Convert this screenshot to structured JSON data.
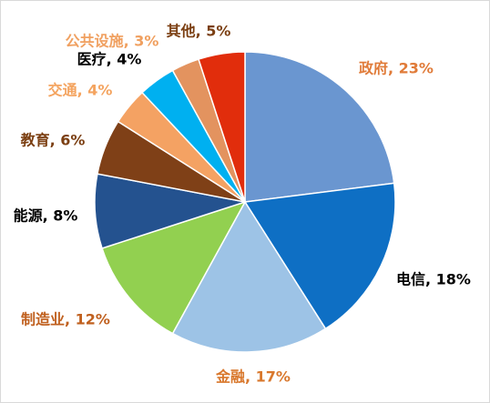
{
  "chart_data": {
    "type": "pie",
    "values": [
      23,
      18,
      17,
      12,
      8,
      6,
      4,
      4,
      3,
      5
    ],
    "value_labels": [
      "政府, 23%",
      "电信, 18%",
      "金融, 17%",
      "制造业, 12%",
      "能源, 8%",
      "教育, 6%",
      "交通, 4%",
      "医疗, 4%",
      "公共设施, 3%",
      "其他, 5%"
    ],
    "colors": [
      "#6a96d0",
      "#0e6fc4",
      "#9dc3e6",
      "#92d050",
      "#24528f",
      "#7f4017",
      "#f4a263",
      "#00b0f0",
      "#e3935f",
      "#e12d0c"
    ],
    "label_colors": [
      "#e07b39",
      "#000000",
      "#d9782d",
      "#c0601f",
      "#000000",
      "#7b3f12",
      "#f4a460",
      "#000000",
      "#f0a060",
      "#7b3f12"
    ]
  }
}
